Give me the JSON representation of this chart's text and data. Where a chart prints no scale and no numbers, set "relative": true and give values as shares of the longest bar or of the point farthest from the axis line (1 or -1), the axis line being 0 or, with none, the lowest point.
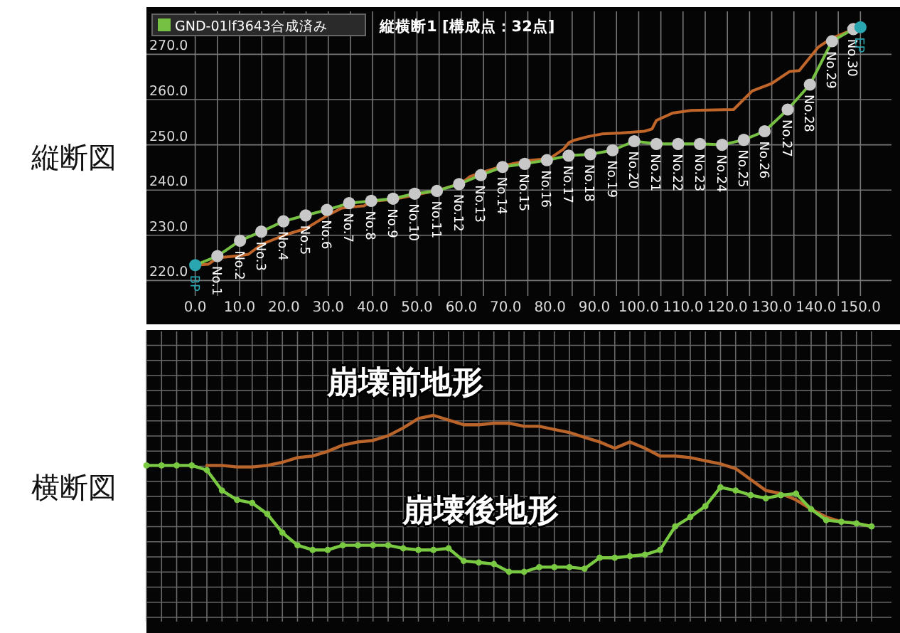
{
  "chart_data": [
    {
      "type": "line",
      "title": "縦断図",
      "xlim": [
        -11,
        157
      ],
      "ylim": [
        216.6,
        279.5
      ],
      "xticks": [
        {
          "value": 0,
          "label": "0.0"
        },
        {
          "value": 5,
          "label": null
        },
        {
          "value": 10,
          "label": "10.0"
        },
        {
          "value": 15,
          "label": null
        },
        {
          "value": 20,
          "label": "20.0"
        },
        {
          "value": 25,
          "label": null
        },
        {
          "value": 30,
          "label": "30.0"
        },
        {
          "value": 35,
          "label": null
        },
        {
          "value": 40,
          "label": "40.0"
        },
        {
          "value": 45,
          "label": null
        },
        {
          "value": 50,
          "label": "50.0"
        },
        {
          "value": 55,
          "label": null
        },
        {
          "value": 60,
          "label": "60.0"
        },
        {
          "value": 65,
          "label": null
        },
        {
          "value": 70,
          "label": "70.0"
        },
        {
          "value": 75,
          "label": null
        },
        {
          "value": 80,
          "label": "80.0"
        },
        {
          "value": 85,
          "label": null
        },
        {
          "value": 90,
          "label": "90.0"
        },
        {
          "value": 95,
          "label": null
        },
        {
          "value": 100,
          "label": "100.0"
        },
        {
          "value": 105,
          "label": null
        },
        {
          "value": 110,
          "label": "110.0"
        },
        {
          "value": 115,
          "label": null
        },
        {
          "value": 120,
          "label": "120.0"
        },
        {
          "value": 125,
          "label": null
        },
        {
          "value": 130,
          "label": "130.0"
        },
        {
          "value": 135,
          "label": null
        },
        {
          "value": 140,
          "label": "140.0"
        },
        {
          "value": 145,
          "label": null
        },
        {
          "value": 150,
          "label": "150.0"
        }
      ],
      "yticks": [
        {
          "value": 220,
          "label": "220.0"
        },
        {
          "value": 230,
          "label": "230.0"
        },
        {
          "value": 240,
          "label": "240.0"
        },
        {
          "value": 250,
          "label": "250.0"
        },
        {
          "value": 260,
          "label": "260.0"
        },
        {
          "value": 270,
          "label": "270.0"
        }
      ],
      "grid": true,
      "legend": "top left",
      "marker": "circle",
      "series": [
        {
          "name": null,
          "color": "#c0662a",
          "marker": "none",
          "x": [
            0,
            3,
            5,
            10,
            12,
            15,
            20,
            25,
            30,
            33,
            38,
            40,
            45,
            50,
            55,
            60,
            62,
            65,
            70,
            75,
            80,
            83,
            84.3,
            85.4,
            88.5,
            91.7,
            96,
            101.3,
            103,
            104,
            107.6,
            111.8,
            121.4,
            125.6,
            129.9,
            134,
            136.2,
            140.5,
            143.6,
            148.9
          ],
          "values": [
            223.4,
            223.6,
            225,
            225.5,
            225.8,
            228,
            230,
            231.5,
            234.5,
            236,
            236.5,
            237.5,
            238,
            239,
            240,
            241.5,
            243,
            244,
            245.5,
            246.5,
            247,
            249,
            250.5,
            251,
            251.8,
            252.4,
            252.6,
            253,
            253.5,
            255.4,
            257,
            257.6,
            257.8,
            261.9,
            263.5,
            266.2,
            266.4,
            271.6,
            273.6,
            275.7
          ]
        },
        {
          "name": "GND-01lf3643合成済み",
          "color": "#76c043",
          "x": [
            0,
            5.0,
            10.1,
            14.9,
            19.9,
            24.9,
            29.7,
            34.7,
            39.7,
            44.6,
            49.5,
            54.5,
            59.5,
            64.4,
            69.3,
            74.3,
            79.3,
            84.2,
            89.1,
            94.1,
            99.0,
            104.0,
            108.9,
            113.8,
            118.8,
            123.7,
            128.4,
            133.6,
            138.6,
            143.6,
            148.4,
            150.0
          ],
          "values": [
            223.4,
            225.4,
            228.8,
            230.8,
            233.1,
            234.4,
            235.6,
            237.1,
            237.6,
            238.1,
            239.2,
            239.8,
            241.3,
            243.3,
            245.1,
            245.8,
            246.6,
            247.6,
            247.9,
            248.8,
            250.8,
            250.2,
            250.2,
            250.2,
            250.0,
            251.1,
            253.0,
            257.8,
            263.3,
            272.9,
            275.6,
            276.0
          ],
          "colors": [
            "#2aa6b0",
            "#c8c8c8",
            "#c8c8c8",
            "#c8c8c8",
            "#c8c8c8",
            "#c8c8c8",
            "#c8c8c8",
            "#c8c8c8",
            "#c8c8c8",
            "#c8c8c8",
            "#c8c8c8",
            "#c8c8c8",
            "#c8c8c8",
            "#c8c8c8",
            "#c8c8c8",
            "#c8c8c8",
            "#c8c8c8",
            "#c8c8c8",
            "#c8c8c8",
            "#c8c8c8",
            "#c8c8c8",
            "#c8c8c8",
            "#c8c8c8",
            "#c8c8c8",
            "#c8c8c8",
            "#c8c8c8",
            "#c8c8c8",
            "#c8c8c8",
            "#c8c8c8",
            "#c8c8c8",
            "#c8c8c8",
            "#2aa6b0"
          ]
        }
      ],
      "annotations": [
        "縦横断1 [構成点：32点]",
        {
          "text": "BP",
          "x": 0,
          "y": 223.4
        },
        {
          "text": "No.1",
          "x": 5.0,
          "y": 225.4
        },
        {
          "text": "No.2",
          "x": 10.1,
          "y": 228.8
        },
        {
          "text": "No.3",
          "x": 14.9,
          "y": 230.8
        },
        {
          "text": "No.4",
          "x": 19.9,
          "y": 233.1
        },
        {
          "text": "No.5",
          "x": 24.9,
          "y": 234.4
        },
        {
          "text": "No.6",
          "x": 29.7,
          "y": 235.6
        },
        {
          "text": "No.7",
          "x": 34.7,
          "y": 237.1
        },
        {
          "text": "No.8",
          "x": 39.7,
          "y": 237.6
        },
        {
          "text": "No.9",
          "x": 44.6,
          "y": 238.1
        },
        {
          "text": "No.10",
          "x": 49.5,
          "y": 239.2
        },
        {
          "text": "No.11",
          "x": 54.5,
          "y": 239.8
        },
        {
          "text": "No.12",
          "x": 59.5,
          "y": 241.3
        },
        {
          "text": "No.13",
          "x": 64.4,
          "y": 243.3
        },
        {
          "text": "No.14",
          "x": 69.3,
          "y": 245.1
        },
        {
          "text": "No.15",
          "x": 74.3,
          "y": 245.8
        },
        {
          "text": "No.16",
          "x": 79.3,
          "y": 246.6
        },
        {
          "text": "No.17",
          "x": 84.2,
          "y": 247.6
        },
        {
          "text": "No.18",
          "x": 89.1,
          "y": 247.9
        },
        {
          "text": "No.19",
          "x": 94.1,
          "y": 248.8
        },
        {
          "text": "No.20",
          "x": 99.0,
          "y": 250.8
        },
        {
          "text": "No.21",
          "x": 104.0,
          "y": 250.2
        },
        {
          "text": "No.22",
          "x": 108.9,
          "y": 250.2
        },
        {
          "text": "No.23",
          "x": 113.8,
          "y": 250.2
        },
        {
          "text": "No.24",
          "x": 118.8,
          "y": 250.0
        },
        {
          "text": "No.25",
          "x": 123.7,
          "y": 251.1
        },
        {
          "text": "No.26",
          "x": 128.4,
          "y": 253.0
        },
        {
          "text": "No.27",
          "x": 133.6,
          "y": 257.8
        },
        {
          "text": "No.28",
          "x": 138.6,
          "y": 263.3
        },
        {
          "text": "No.29",
          "x": 143.6,
          "y": 272.9
        },
        {
          "text": "No.30",
          "x": 148.4,
          "y": 275.6
        },
        {
          "text": "EP",
          "x": 150.0,
          "y": 276.0
        }
      ]
    },
    {
      "type": "line",
      "title": "横断図",
      "relative": true,
      "grid": true,
      "legend": false,
      "marker": "circle",
      "categories": [
        null,
        null,
        null,
        null,
        null,
        null,
        null,
        null,
        null,
        null,
        null,
        null,
        null,
        null,
        null,
        null,
        null,
        null,
        null,
        null,
        null,
        null,
        null,
        null,
        null,
        null,
        null,
        null,
        null,
        null,
        null,
        null,
        null,
        null,
        null,
        null,
        null,
        null,
        null,
        null,
        null,
        null,
        null,
        null,
        null,
        null,
        null,
        null,
        null
      ],
      "series": [
        {
          "name": "崩壊前地形",
          "color": "#b8642a",
          "marker": "none",
          "values": [
            null,
            null,
            null,
            null,
            0.68,
            0.68,
            0.67,
            0.67,
            0.68,
            0.7,
            0.73,
            0.74,
            0.77,
            0.81,
            0.83,
            0.84,
            0.87,
            0.92,
            0.98,
            1.0,
            0.97,
            0.94,
            0.94,
            0.95,
            0.95,
            0.93,
            0.93,
            0.91,
            0.89,
            0.86,
            0.83,
            0.79,
            0.83,
            0.79,
            0.74,
            0.74,
            0.73,
            0.71,
            0.69,
            0.66,
            0.59,
            0.52,
            0.5,
            0.46,
            0.4,
            0.35,
            0.32,
            0.31,
            0.29
          ]
        },
        {
          "name": "崩壊後地形",
          "color": "#7ac943",
          "values": [
            0.68,
            0.68,
            0.68,
            0.68,
            0.65,
            0.52,
            0.46,
            0.44,
            0.37,
            0.25,
            0.17,
            0.14,
            0.14,
            0.17,
            0.17,
            0.17,
            0.17,
            0.15,
            0.14,
            0.14,
            0.15,
            0.07,
            0.06,
            0.05,
            0,
            0,
            0.03,
            0.03,
            0.03,
            0.02,
            0.09,
            0.09,
            0.1,
            0.11,
            0.14,
            0.29,
            0.35,
            0.42,
            0.54,
            0.52,
            0.49,
            0.47,
            0.49,
            0.5,
            0.4,
            0.33,
            0.32,
            0.31,
            0.29
          ]
        }
      ]
    }
  ]
}
